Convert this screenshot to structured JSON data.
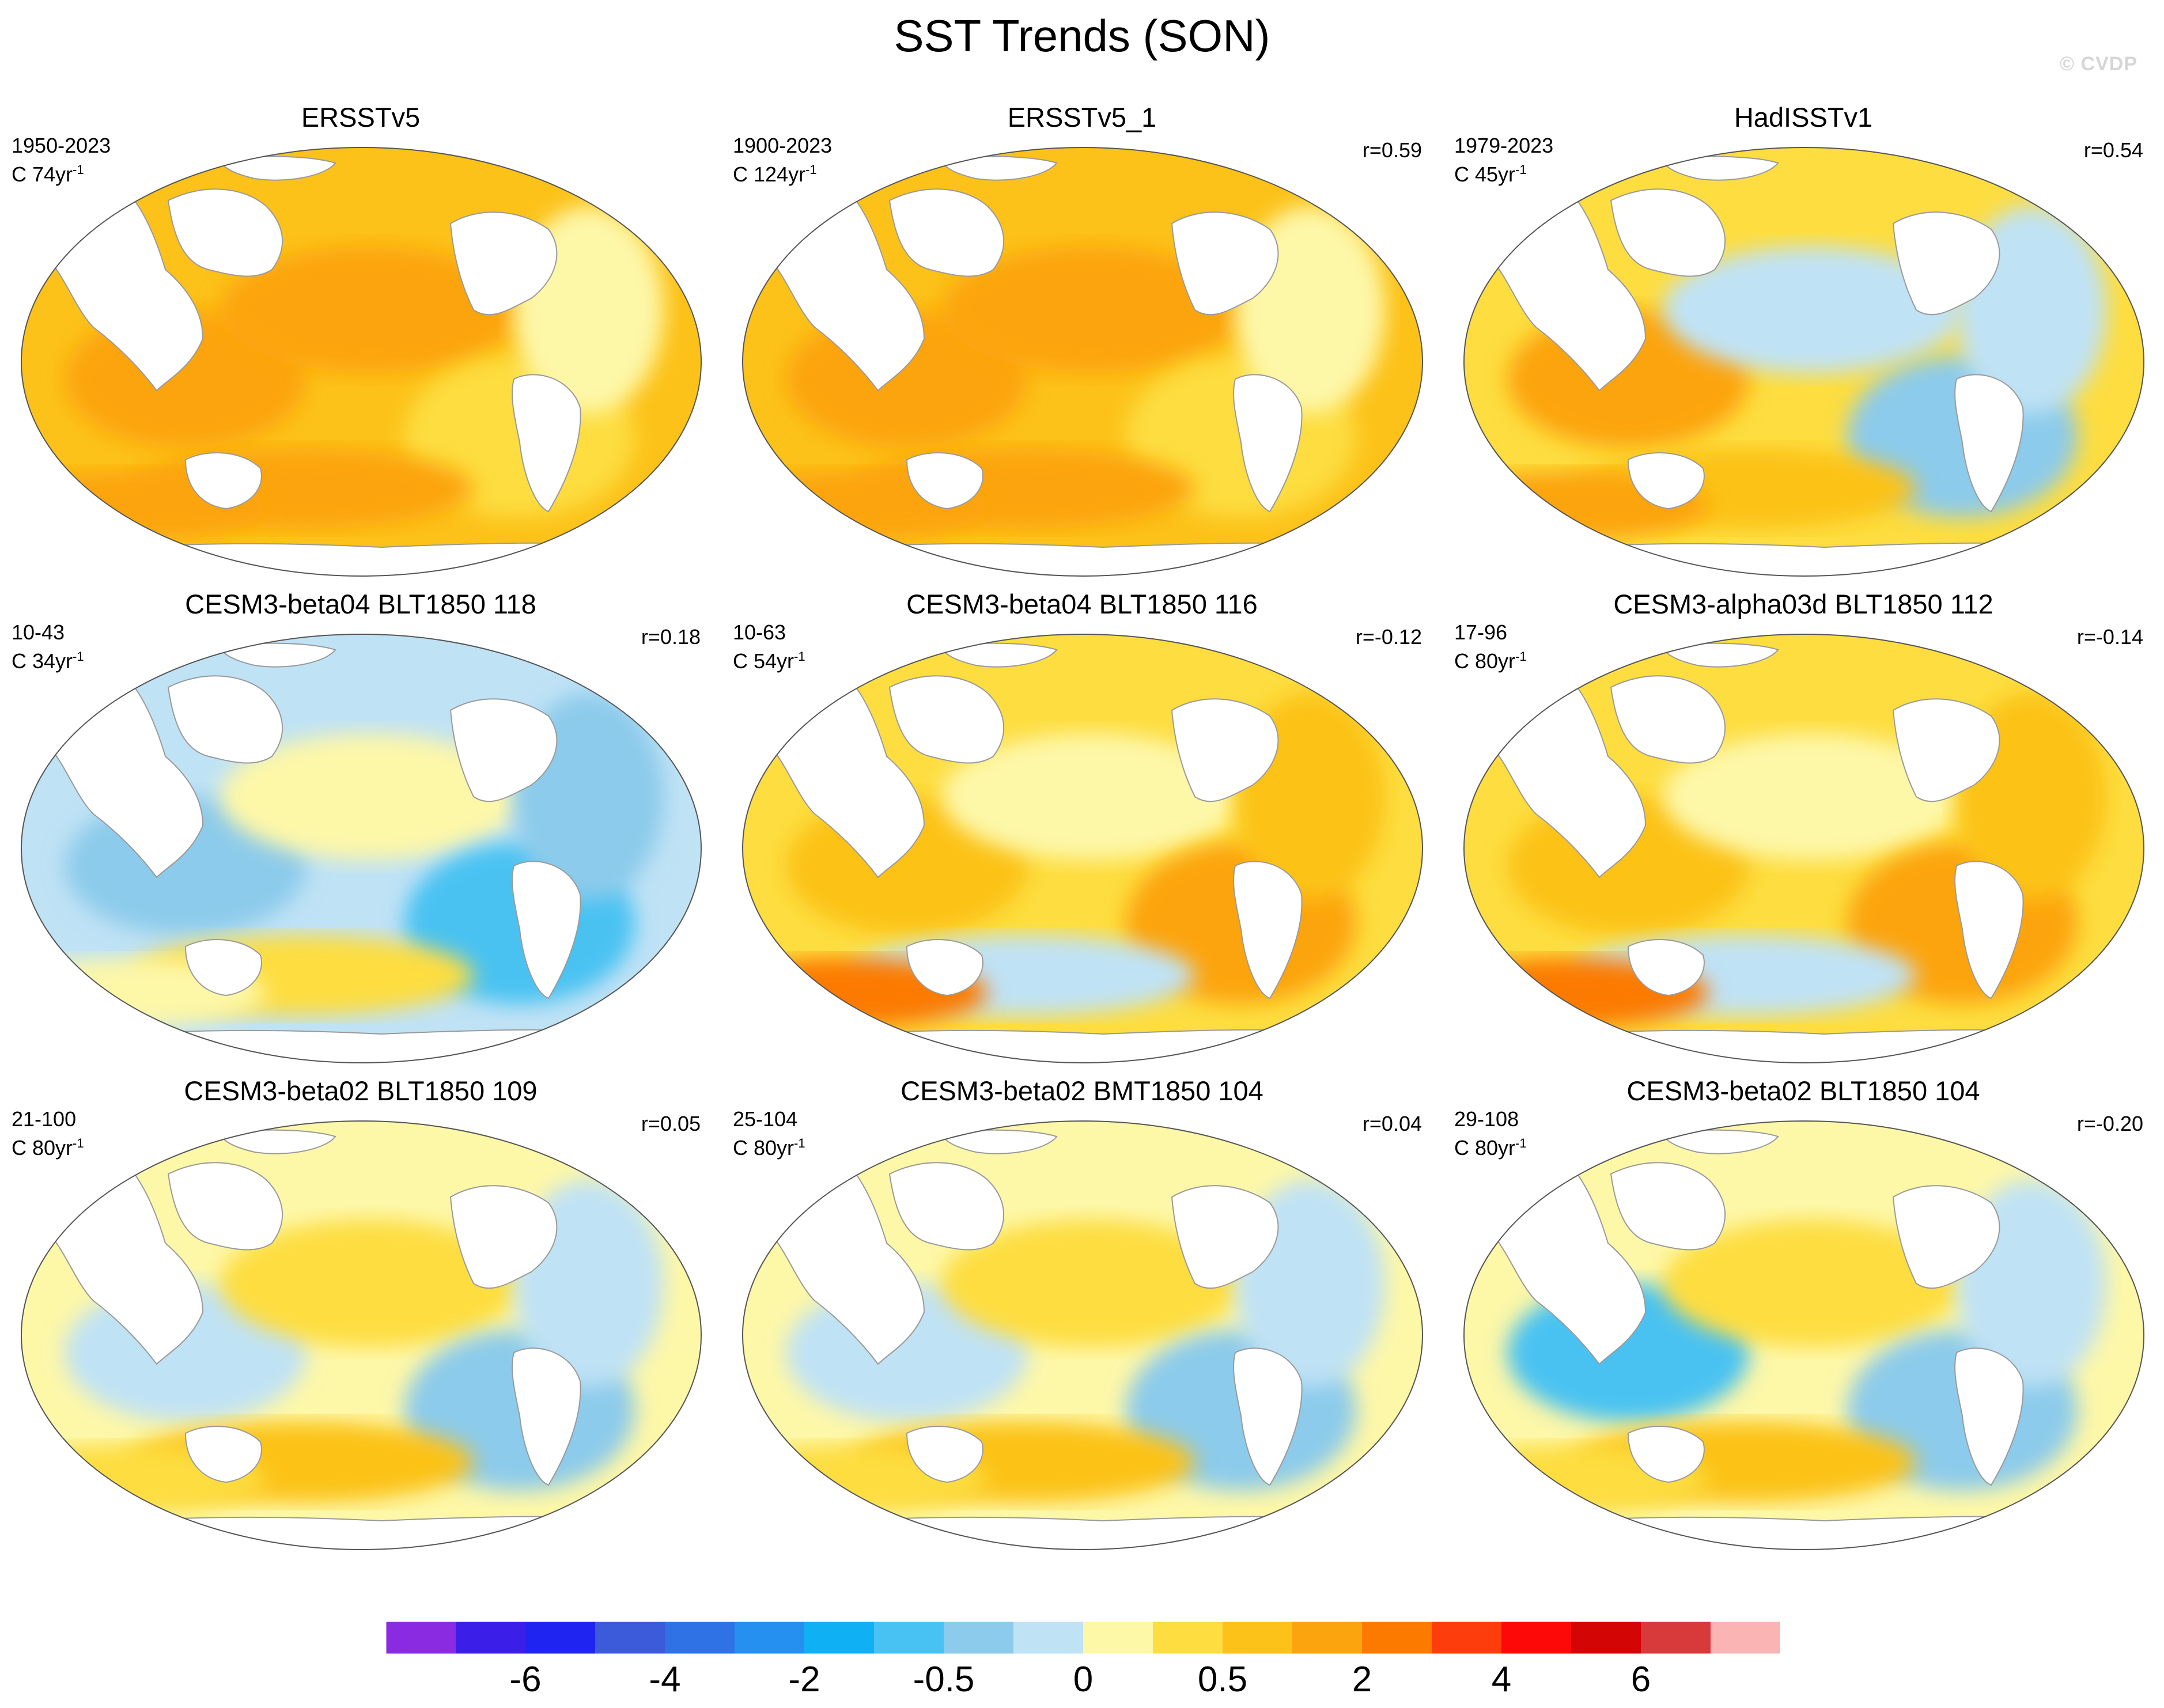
{
  "title": "SST Trends (SON)",
  "watermark": "© CVDP",
  "panels": [
    {
      "title": "ERSSTv5",
      "period": "1950-2023",
      "scale": "C 74yr",
      "corr": "",
      "pattern": "warm"
    },
    {
      "title": "ERSSTv5_1",
      "period": "1900-2023",
      "scale": "C 124yr",
      "corr": "r=0.59",
      "pattern": "warm"
    },
    {
      "title": "HadISSTv1",
      "period": "1979-2023",
      "scale": "C 45yr",
      "corr": "r=0.54",
      "pattern": "warm-cold-east"
    },
    {
      "title": "CESM3-beta04 BLT1850 118",
      "period": "10-43",
      "scale": "C 34yr",
      "corr": "r=0.18",
      "pattern": "cool"
    },
    {
      "title": "CESM3-beta04 BLT1850 116",
      "period": "10-63",
      "scale": "C 54yr",
      "corr": "r=-0.12",
      "pattern": "mixed-warm"
    },
    {
      "title": "CESM3-alpha03d BLT1850 112",
      "period": "17-96",
      "scale": "C 80yr",
      "corr": "r=-0.14",
      "pattern": "mixed-warm"
    },
    {
      "title": "CESM3-beta02 BLT1850 109",
      "period": "21-100",
      "scale": "C 80yr",
      "corr": "r=0.05",
      "pattern": "mixed-cool"
    },
    {
      "title": "CESM3-beta02 BMT1850 104",
      "period": "25-104",
      "scale": "C 80yr",
      "corr": "r=0.04",
      "pattern": "mixed-cool"
    },
    {
      "title": "CESM3-beta02 BLT1850 104",
      "period": "29-108",
      "scale": "C 80yr",
      "corr": "r=-0.20",
      "pattern": "cold-north"
    }
  ],
  "colorbar": {
    "colors": [
      "#8a2be2",
      "#3b1fe8",
      "#1f24f0",
      "#3b5bdb",
      "#2f72e6",
      "#2590f0",
      "#10b0f4",
      "#48c2f2",
      "#8ccbeb",
      "#bfe2f5",
      "#fdf7a8",
      "#fddd40",
      "#fcc219",
      "#fca40e",
      "#fc7a00",
      "#fd3d0c",
      "#fd0a08",
      "#d40505",
      "#d8393a",
      "#fbb4b4"
    ],
    "labels": [
      "-6",
      "-4",
      "-2",
      "-0.5",
      "0",
      "0.5",
      "2",
      "4",
      "6"
    ],
    "label_boundaries": [
      2,
      4,
      6,
      8,
      10,
      12,
      14,
      16,
      18
    ]
  }
}
